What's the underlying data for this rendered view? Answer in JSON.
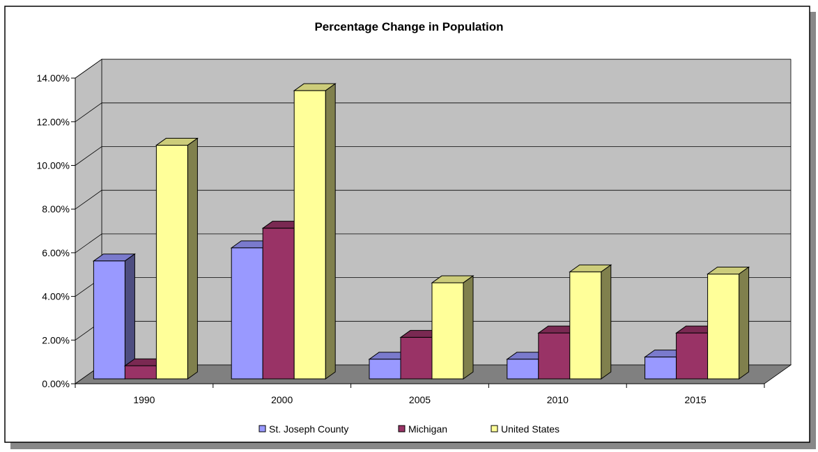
{
  "chart_data": {
    "type": "bar",
    "title": "Percentage Change in Population",
    "xlabel": "",
    "ylabel": "",
    "categories": [
      "1990",
      "2000",
      "2005",
      "2010",
      "2015"
    ],
    "series": [
      {
        "name": "St. Joseph County",
        "values": [
          5.4,
          6.0,
          0.9,
          0.9,
          1.0
        ],
        "color": "#9999ff"
      },
      {
        "name": "Michigan",
        "values": [
          0.6,
          6.9,
          1.9,
          2.1,
          2.1
        ],
        "color": "#993366"
      },
      {
        "name": "United States",
        "values": [
          10.7,
          13.2,
          4.4,
          4.9,
          4.8
        ],
        "color": "#ffff99"
      }
    ],
    "ylim": [
      0,
      14
    ],
    "yticks": [
      "0.00%",
      "2.00%",
      "4.00%",
      "6.00%",
      "8.00%",
      "10.00%",
      "12.00%",
      "14.00%"
    ],
    "grid": true,
    "legend_position": "bottom",
    "style": "3d-clustered-column"
  }
}
